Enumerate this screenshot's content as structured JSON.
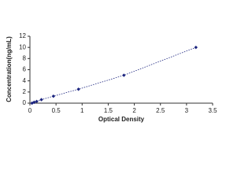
{
  "chart_data": {
    "type": "scatter",
    "x_label": "Optical Density",
    "y_label": "Concentration(ng/mL)",
    "x": [
      0.04,
      0.08,
      0.13,
      0.22,
      0.45,
      0.93,
      1.8,
      3.18
    ],
    "values": [
      0,
      0.16,
      0.31,
      0.63,
      1.25,
      2.5,
      5,
      10
    ],
    "color": "#1a237e",
    "line": true,
    "xlim": [
      0,
      3.5
    ],
    "xticks": [
      0,
      0.5,
      1,
      1.5,
      2,
      2.5,
      3,
      3.5
    ],
    "ylim": [
      0,
      12
    ],
    "yticks": [
      0,
      2,
      4,
      6,
      8,
      10,
      12
    ]
  }
}
